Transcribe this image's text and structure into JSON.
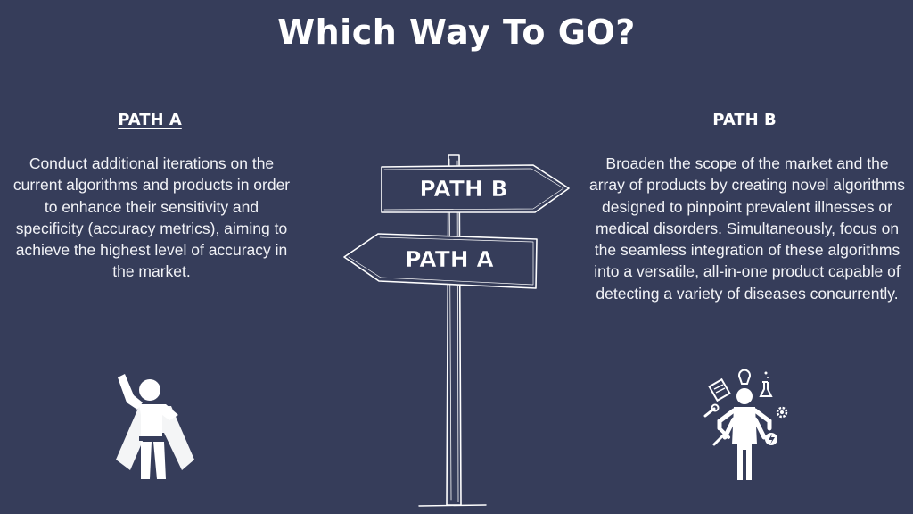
{
  "title": "Which Way To GO?",
  "path_a": {
    "heading": "PATH A",
    "description": "Conduct additional iterations on the current algorithms and products in order to enhance their sensitivity and specificity (accuracy metrics), aiming to achieve the highest level of accuracy in the market.",
    "icon": "superhero-icon"
  },
  "path_b": {
    "heading": "PATH B",
    "description": "Broaden the scope of the market and the array of products by creating novel algorithms designed to pinpoint prevalent illnesses or medical disorders. Simultaneously, focus on the seamless integration of these algorithms into a versatile, all-in-one product capable of detecting a variety of diseases concurrently.",
    "icon": "multitasking-person-icon"
  },
  "signpost": {
    "upper_sign": "PATH B",
    "lower_sign": "PATH A"
  },
  "colors": {
    "background": "#363d5a",
    "foreground": "#ffffff"
  }
}
